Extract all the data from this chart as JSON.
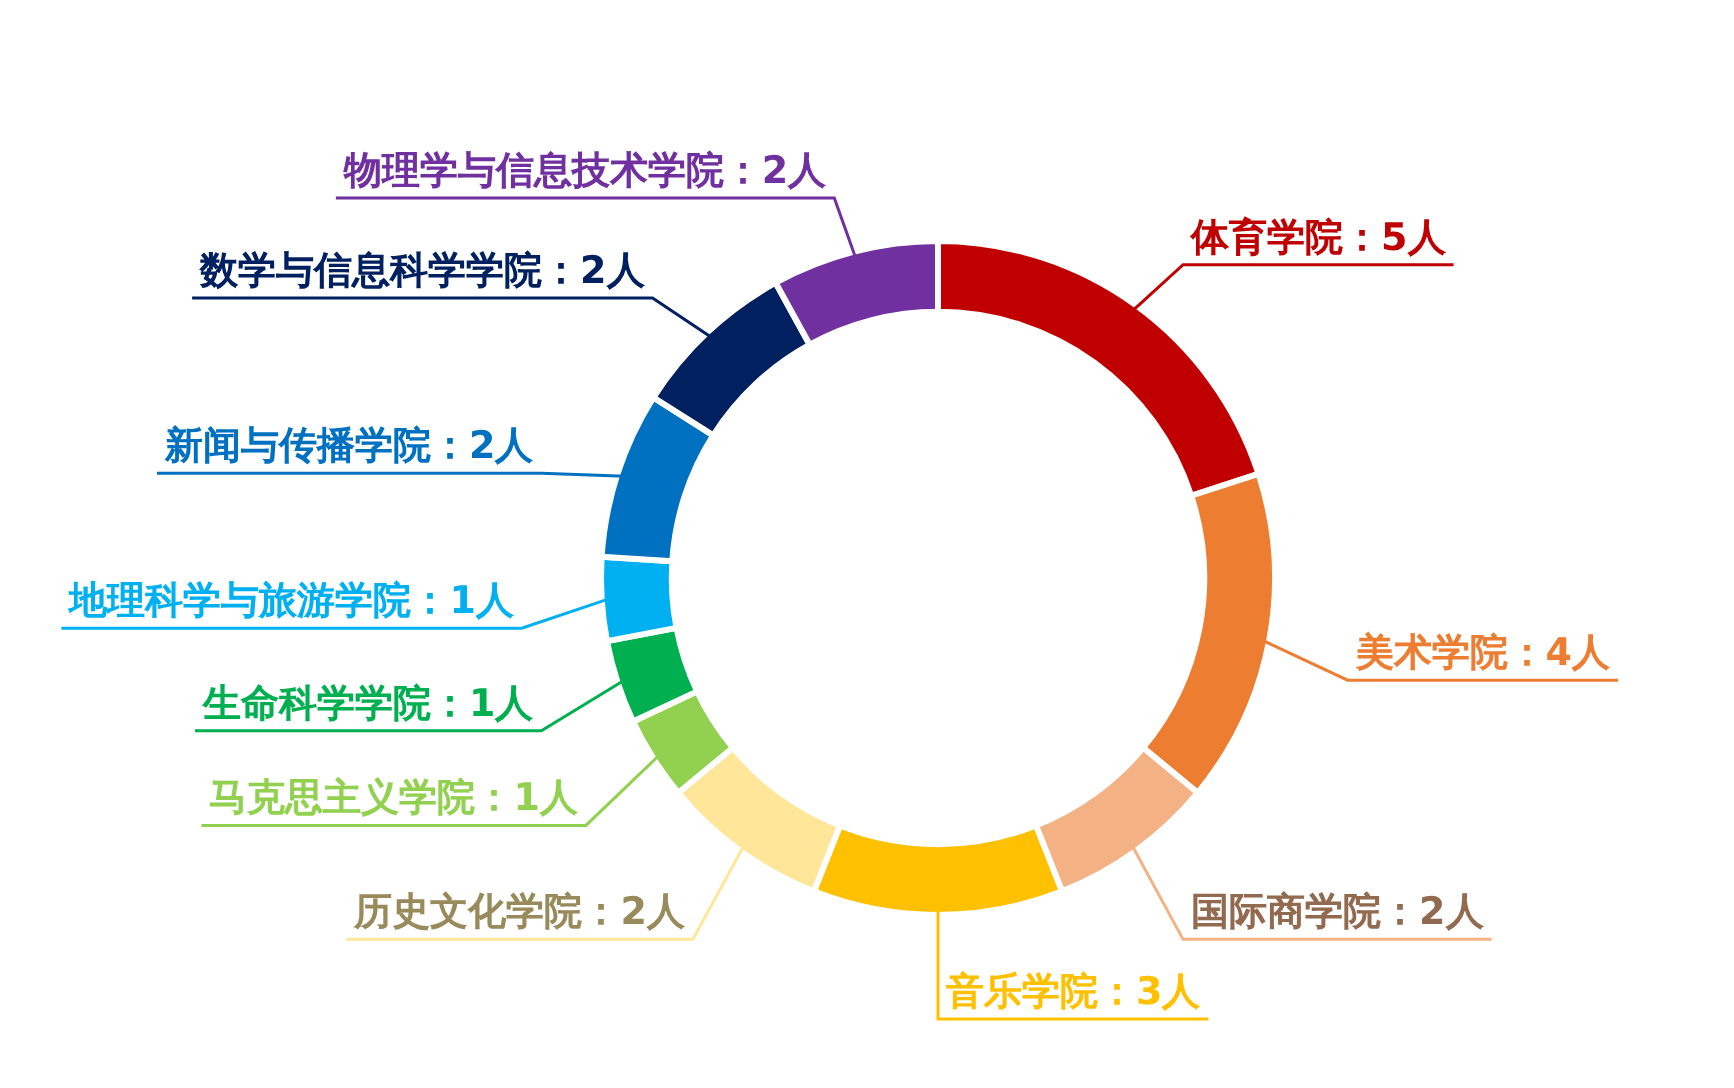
{
  "chart_data": {
    "type": "donut",
    "categories": [
      "体育学院：5人",
      "美术学院：4人",
      "国际商学院：2人",
      "音乐学院：3人",
      "历史文化学院：2人",
      "马克思主义学院：1人",
      "生命科学学院：1人",
      "地理科学与旅游学院：1人",
      "新闻与传播学院：2人",
      "数学与信息科学学院：2人",
      "物理学与信息技术学院：2人"
    ],
    "values": [
      5,
      4,
      2,
      3,
      2,
      1,
      1,
      1,
      2,
      2,
      2
    ],
    "colors": [
      "#c00000",
      "#ed7d31",
      "#f4b183",
      "#ffc000",
      "#ffe699",
      "#92d050",
      "#00b050",
      "#00b0f0",
      "#0070c0",
      "#002060",
      "#7030a0"
    ],
    "legend": false
  }
}
